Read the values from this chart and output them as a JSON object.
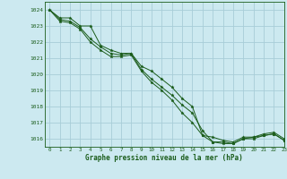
{
  "title": "Graphe pression niveau de la mer (hPa)",
  "background_color": "#cce9f0",
  "grid_color": "#a8cdd8",
  "line_color": "#1a5c1a",
  "marker_color": "#1a5c1a",
  "xlim": [
    -0.5,
    23
  ],
  "ylim": [
    1015.5,
    1024.5
  ],
  "xticks": [
    0,
    1,
    2,
    3,
    4,
    5,
    6,
    7,
    8,
    9,
    10,
    11,
    12,
    13,
    14,
    15,
    16,
    17,
    18,
    19,
    20,
    21,
    22,
    23
  ],
  "yticks": [
    1016,
    1017,
    1018,
    1019,
    1020,
    1021,
    1022,
    1023,
    1024
  ],
  "series": [
    [
      1024.0,
      1023.5,
      1023.5,
      1023.0,
      1023.0,
      1021.8,
      1021.5,
      1021.3,
      1021.3,
      1020.5,
      1020.2,
      1019.7,
      1019.2,
      1018.5,
      1018.0,
      1016.2,
      1016.1,
      1015.9,
      1015.8,
      1016.1,
      1016.1,
      1016.3,
      1016.4,
      1016.0
    ],
    [
      1024.0,
      1023.4,
      1023.3,
      1022.9,
      1022.2,
      1021.7,
      1021.3,
      1021.2,
      1021.3,
      1020.3,
      1019.7,
      1019.2,
      1018.7,
      1018.1,
      1017.6,
      1016.5,
      1015.8,
      1015.8,
      1015.7,
      1016.0,
      1016.0,
      1016.2,
      1016.3,
      1015.9
    ],
    [
      1024.0,
      1023.3,
      1023.2,
      1022.8,
      1022.0,
      1021.5,
      1021.1,
      1021.1,
      1021.2,
      1020.2,
      1019.5,
      1019.0,
      1018.4,
      1017.6,
      1017.0,
      1016.2,
      1015.8,
      1015.7,
      1015.7,
      1016.0,
      1016.1,
      1016.2,
      1016.3,
      1015.9
    ]
  ]
}
